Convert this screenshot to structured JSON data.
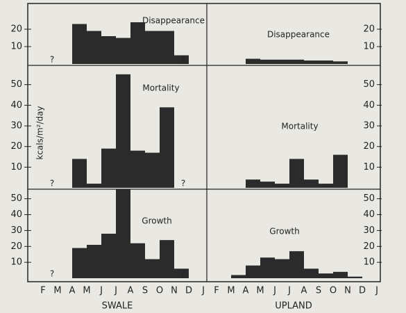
{
  "chart_data": [
    {
      "type": "bar",
      "title": "Disappearance",
      "categories": [
        "F",
        "M",
        "A",
        "M",
        "J",
        "J",
        "A",
        "S",
        "O",
        "N",
        "D",
        "J"
      ],
      "values": [
        null,
        null,
        23,
        19,
        16,
        15,
        24,
        19,
        19,
        5,
        null,
        null
      ],
      "ylim": [
        0,
        34
      ],
      "yticks": [
        10,
        20
      ],
      "color": "#2b2b2b",
      "annotations": [
        "?",
        "?"
      ]
    },
    {
      "type": "bar",
      "title": "Disappearance",
      "categories": [
        "F",
        "M",
        "A",
        "M",
        "J",
        "J",
        "A",
        "S",
        "O",
        "N",
        "D",
        "J"
      ],
      "values": [
        null,
        null,
        3,
        2.5,
        2.5,
        2.5,
        2,
        2,
        1.5,
        null,
        null,
        null
      ],
      "ylim": [
        0,
        34
      ],
      "yticks": [
        10,
        20
      ],
      "color": "#2b2b2b"
    },
    {
      "type": "bar",
      "title": "Mortality",
      "y_label": "kcals/m²/day",
      "categories": [
        "F",
        "M",
        "A",
        "M",
        "J",
        "J",
        "A",
        "S",
        "O",
        "N",
        "D",
        "J"
      ],
      "values": [
        null,
        null,
        14,
        2,
        19,
        55,
        18,
        17,
        39,
        null,
        null,
        null
      ],
      "ylim": [
        0,
        60
      ],
      "yticks": [
        10,
        20,
        30,
        40,
        50
      ],
      "color": "#2b2b2b",
      "annotations": [
        "?",
        "?"
      ]
    },
    {
      "type": "bar",
      "title": "Mortality",
      "categories": [
        "F",
        "M",
        "A",
        "M",
        "J",
        "J",
        "A",
        "S",
        "O",
        "N",
        "D",
        "J"
      ],
      "values": [
        null,
        null,
        4,
        3,
        2,
        14,
        4,
        2,
        16,
        null,
        null,
        null
      ],
      "ylim": [
        0,
        60
      ],
      "yticks": [
        10,
        20,
        30,
        40,
        50
      ],
      "color": "#2b2b2b"
    },
    {
      "type": "bar",
      "title": "Growth",
      "x_label": "SWALE",
      "categories": [
        "F",
        "M",
        "A",
        "M",
        "J",
        "J",
        "A",
        "S",
        "O",
        "N",
        "D",
        "J"
      ],
      "values": [
        null,
        null,
        19,
        21,
        28,
        56,
        22,
        12,
        24,
        6,
        null,
        null
      ],
      "ylim": [
        0,
        56
      ],
      "yticks": [
        10,
        20,
        30,
        40,
        50
      ],
      "color": "#2b2b2b",
      "annotations": [
        "?",
        "?"
      ]
    },
    {
      "type": "bar",
      "title": "Growth",
      "x_label": "UPLAND",
      "categories": [
        "F",
        "M",
        "A",
        "M",
        "J",
        "J",
        "A",
        "S",
        "O",
        "N",
        "D",
        "J"
      ],
      "values": [
        null,
        2,
        8,
        13,
        12,
        17,
        6,
        3,
        4,
        1,
        null,
        null
      ],
      "ylim": [
        0,
        56
      ],
      "yticks": [
        10,
        20,
        30,
        40,
        50
      ],
      "color": "#2b2b2b"
    }
  ]
}
